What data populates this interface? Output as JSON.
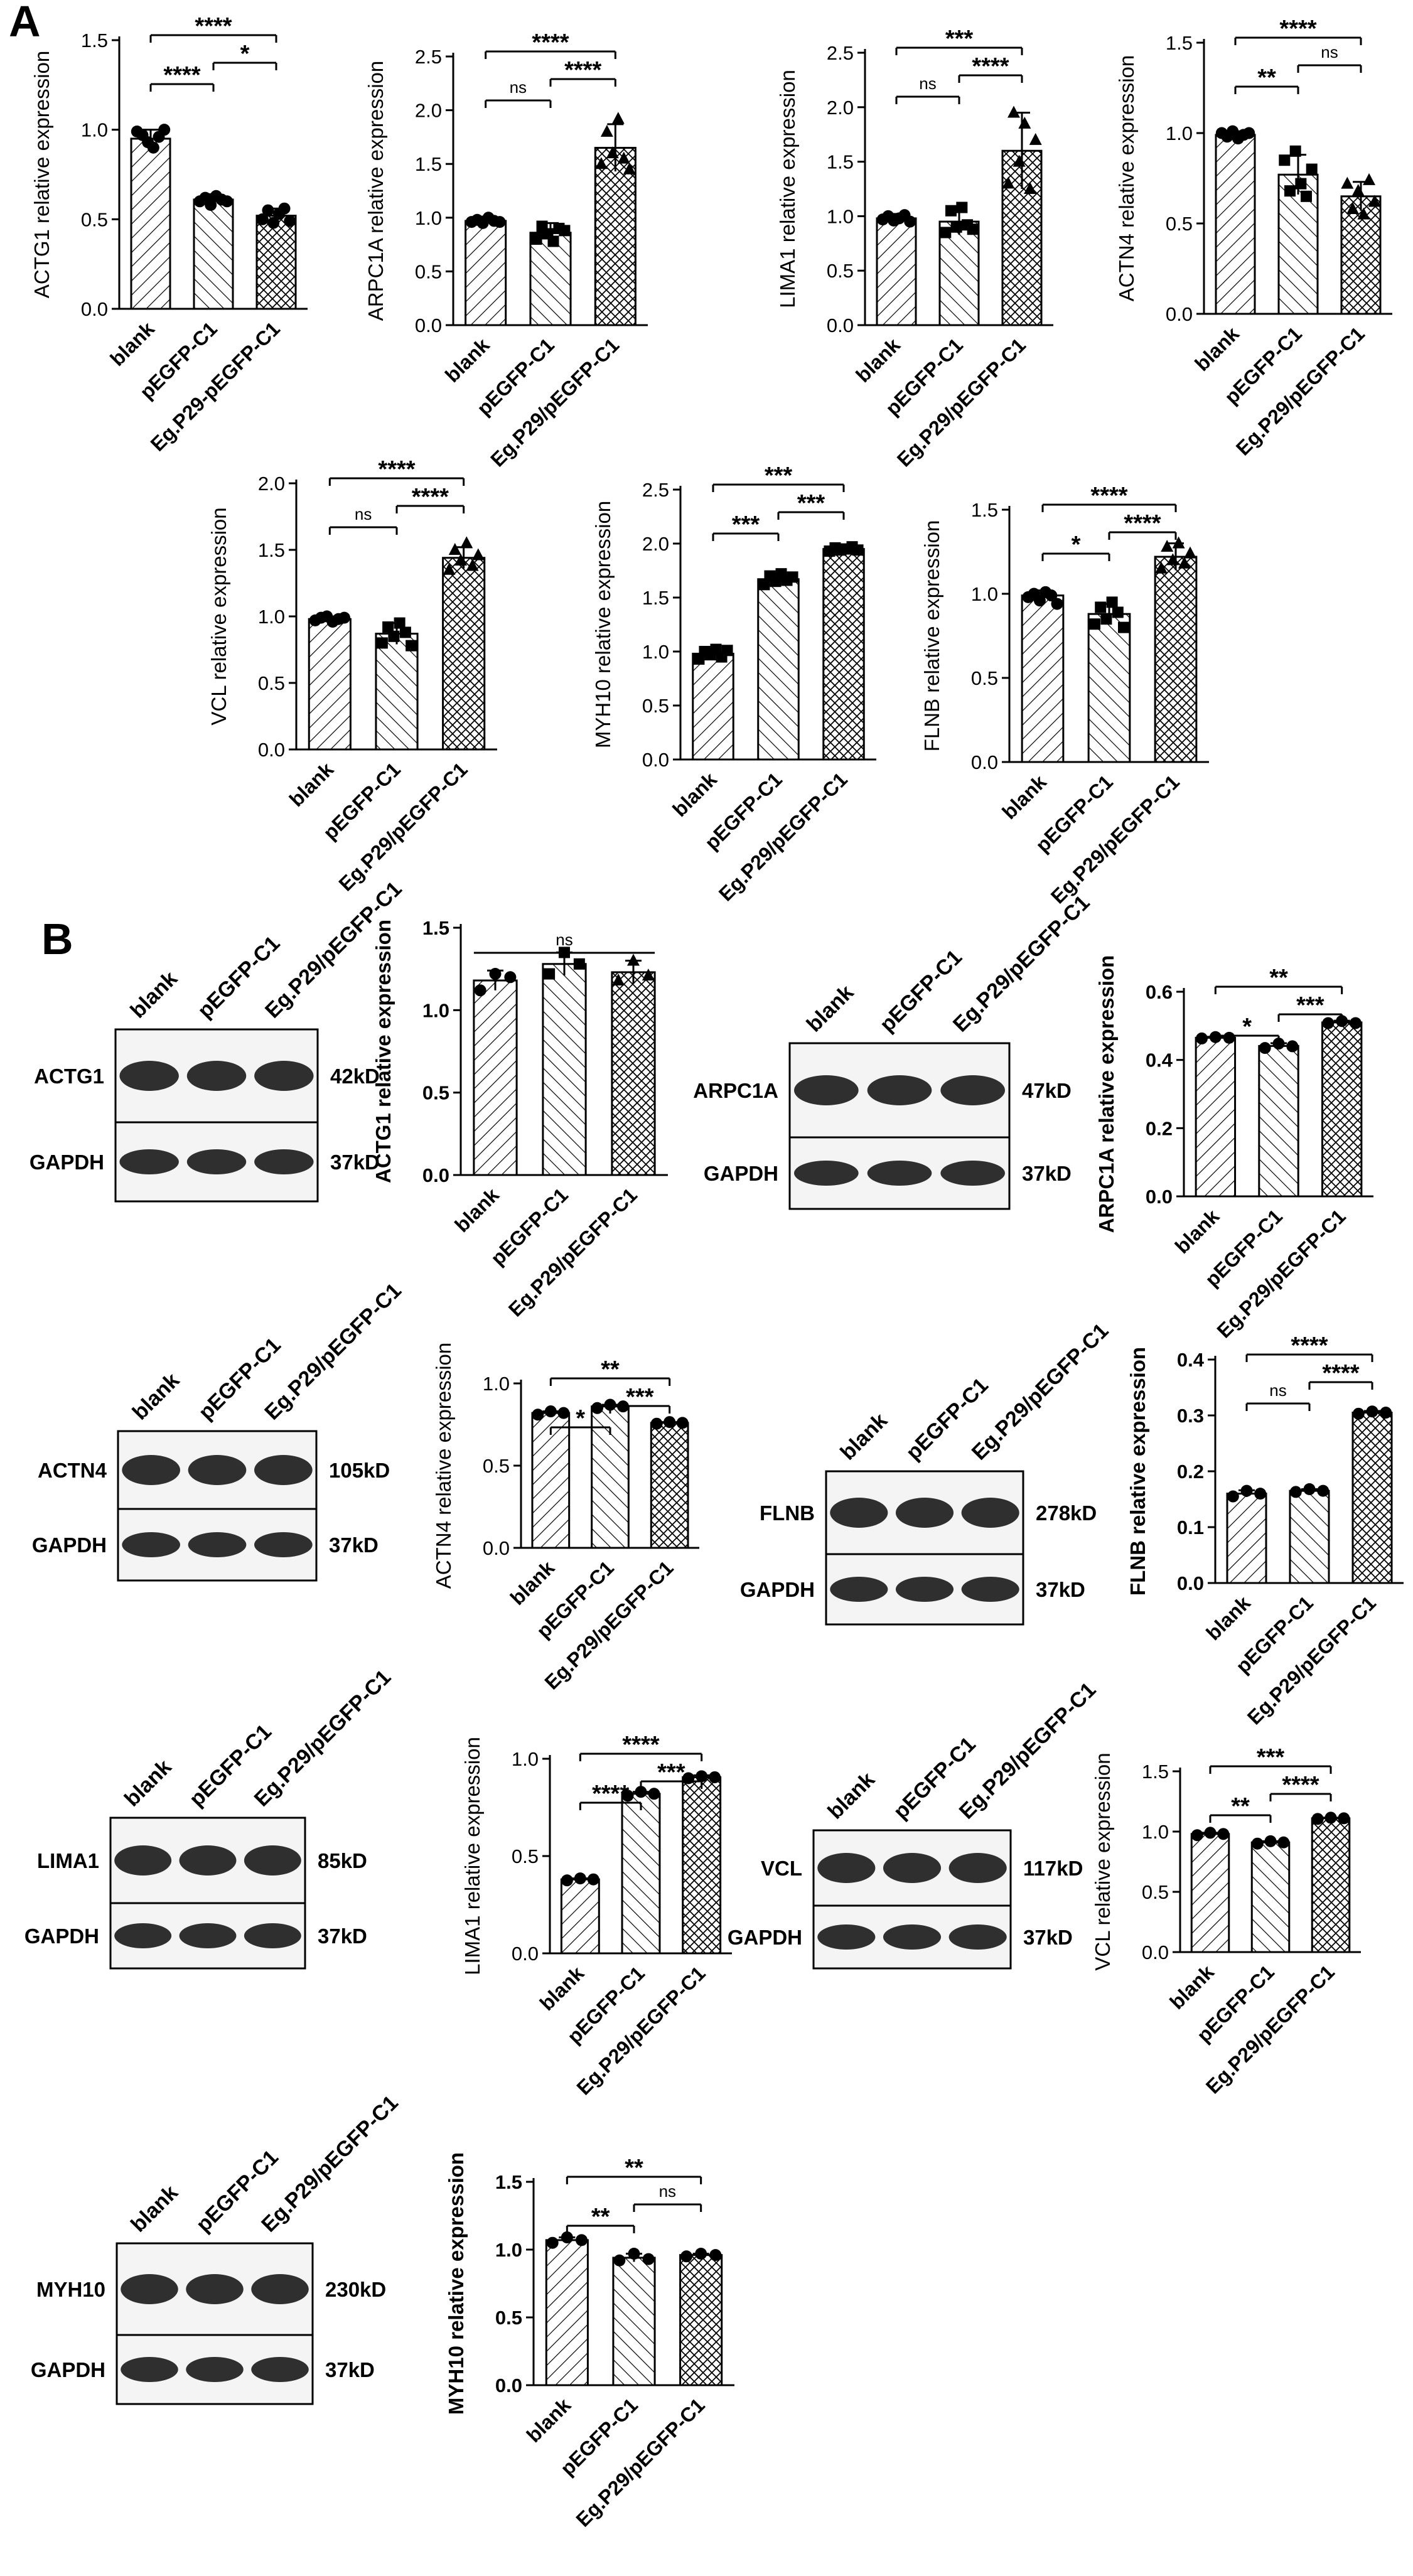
{
  "panels": {
    "A": "A",
    "B": "B"
  },
  "colors": {
    "ink": "#000000",
    "paper": "#ffffff",
    "band": "#1a1a1a",
    "blot_bg": "#dadada"
  },
  "chart_data": [
    {
      "type": "bar",
      "panel": "A",
      "ylabel": "ACTG1 relative expression",
      "categories": [
        "blank",
        "pEGFP-C1",
        "Eg.P29-pEGFP-C1"
      ],
      "values": [
        0.95,
        0.61,
        0.52
      ],
      "errors": [
        0.05,
        0.03,
        0.04
      ],
      "points": [
        [
          0.99,
          0.97,
          0.93,
          0.9,
          0.96,
          1.0
        ],
        [
          0.6,
          0.62,
          0.58,
          0.63,
          0.61,
          0.6
        ],
        [
          0.5,
          0.55,
          0.48,
          0.53,
          0.56,
          0.49
        ]
      ],
      "ylim": [
        0,
        1.5
      ],
      "yticks": [
        0,
        0.5,
        1.0,
        1.5
      ],
      "tick_labels": [
        "0.0",
        "0.5",
        "1.0",
        "1.5"
      ],
      "marker": "circle",
      "bold": false,
      "annotations": [
        {
          "pair": [
            0,
            1
          ],
          "text": "****"
        },
        {
          "pair": [
            1,
            2
          ],
          "text": "*"
        },
        {
          "pair": [
            0,
            2
          ],
          "text": "****"
        }
      ]
    },
    {
      "type": "bar",
      "panel": "A",
      "ylabel": "ARPC1A relative expression",
      "categories": [
        "blank",
        "pEGFP-C1",
        "Eg.P29/pEGFP-C1"
      ],
      "values": [
        0.97,
        0.86,
        1.65
      ],
      "errors": [
        0.04,
        0.09,
        0.22
      ],
      "points": [
        [
          0.96,
          0.98,
          0.95,
          1.0,
          0.97,
          0.96
        ],
        [
          0.8,
          0.92,
          0.85,
          0.78,
          0.9,
          0.88
        ],
        [
          1.5,
          1.8,
          1.6,
          1.92,
          1.55,
          1.45
        ]
      ],
      "ylim": [
        0,
        2.5
      ],
      "yticks": [
        0,
        0.5,
        1.0,
        1.5,
        2.0,
        2.5
      ],
      "tick_labels": [
        "0.0",
        "0.5",
        "1.0",
        "1.5",
        "2.0",
        "2.5"
      ],
      "marker": "mix",
      "bold": false,
      "annotations": [
        {
          "pair": [
            0,
            1
          ],
          "text": "ns"
        },
        {
          "pair": [
            1,
            2
          ],
          "text": "****"
        },
        {
          "pair": [
            0,
            2
          ],
          "text": "****"
        }
      ]
    },
    {
      "type": "bar",
      "panel": "A",
      "ylabel": "LIMA1 relative expression",
      "categories": [
        "blank",
        "pEGFP-C1",
        "Eg.P29/pEGFP-C1"
      ],
      "values": [
        0.98,
        0.95,
        1.6
      ],
      "errors": [
        0.04,
        0.12,
        0.35
      ],
      "points": [
        [
          0.97,
          1.0,
          0.96,
          0.98,
          1.01,
          0.95
        ],
        [
          0.85,
          1.05,
          0.9,
          1.08,
          0.92,
          0.88
        ],
        [
          1.3,
          1.95,
          1.5,
          1.85,
          1.25,
          1.7
        ]
      ],
      "ylim": [
        0,
        2.5
      ],
      "yticks": [
        0,
        0.5,
        1.0,
        1.5,
        2.0,
        2.5
      ],
      "tick_labels": [
        "0.0",
        "0.5",
        "1.0",
        "1.5",
        "2.0",
        "2.5"
      ],
      "marker": "mix",
      "bold": false,
      "annotations": [
        {
          "pair": [
            0,
            1
          ],
          "text": "ns"
        },
        {
          "pair": [
            1,
            2
          ],
          "text": "****"
        },
        {
          "pair": [
            0,
            2
          ],
          "text": "***"
        }
      ]
    },
    {
      "type": "bar",
      "panel": "A",
      "ylabel": "ACTN4 relative expression",
      "categories": [
        "blank",
        "pEGFP-C1",
        "Eg.P29/pEGFP-C1"
      ],
      "values": [
        0.99,
        0.77,
        0.65
      ],
      "errors": [
        0.02,
        0.11,
        0.08
      ],
      "points": [
        [
          1.0,
          0.98,
          1.01,
          0.97,
          0.99,
          1.0
        ],
        [
          0.85,
          0.68,
          0.9,
          0.72,
          0.65,
          0.8
        ],
        [
          0.72,
          0.58,
          0.68,
          0.55,
          0.74,
          0.62
        ]
      ],
      "ylim": [
        0,
        1.5
      ],
      "yticks": [
        0,
        0.5,
        1.0,
        1.5
      ],
      "tick_labels": [
        "0.0",
        "0.5",
        "1.0",
        "1.5"
      ],
      "marker": "mix",
      "bold": false,
      "annotations": [
        {
          "pair": [
            0,
            1
          ],
          "text": "**"
        },
        {
          "pair": [
            1,
            2
          ],
          "text": "ns"
        },
        {
          "pair": [
            0,
            2
          ],
          "text": "****"
        }
      ]
    },
    {
      "type": "bar",
      "panel": "A",
      "ylabel": "VCL relative expression",
      "categories": [
        "blank",
        "pEGFP-C1",
        "Eg.P29/pEGFP-C1"
      ],
      "values": [
        0.98,
        0.87,
        1.44
      ],
      "errors": [
        0.02,
        0.08,
        0.08
      ],
      "points": [
        [
          0.97,
          0.99,
          1.0,
          0.96,
          0.98,
          0.99
        ],
        [
          0.8,
          0.92,
          0.85,
          0.95,
          0.88,
          0.78
        ],
        [
          1.35,
          1.5,
          1.42,
          1.55,
          1.38,
          1.46
        ]
      ],
      "ylim": [
        0,
        2.0
      ],
      "yticks": [
        0,
        0.5,
        1.0,
        1.5,
        2.0
      ],
      "tick_labels": [
        "0.0",
        "0.5",
        "1.0",
        "1.5",
        "2.0"
      ],
      "marker": "mix",
      "bold": false,
      "annotations": [
        {
          "pair": [
            0,
            1
          ],
          "text": "ns"
        },
        {
          "pair": [
            1,
            2
          ],
          "text": "****"
        },
        {
          "pair": [
            0,
            2
          ],
          "text": "****"
        }
      ]
    },
    {
      "type": "bar",
      "panel": "A",
      "ylabel": "MYH10 relative expression",
      "categories": [
        "blank",
        "pEGFP-C1",
        "Eg.P29/pEGFP-C1"
      ],
      "values": [
        0.98,
        1.67,
        1.95
      ],
      "errors": [
        0.05,
        0.05,
        0.02
      ],
      "points": [
        [
          0.93,
          1.0,
          0.97,
          1.02,
          0.95,
          1.01
        ],
        [
          1.62,
          1.7,
          1.65,
          1.72,
          1.66,
          1.69
        ],
        [
          1.93,
          1.96,
          1.94,
          1.95,
          1.97,
          1.94
        ]
      ],
      "ylim": [
        0,
        2.5
      ],
      "yticks": [
        0,
        0.5,
        1.0,
        1.5,
        2.0,
        2.5
      ],
      "tick_labels": [
        "0.0",
        "0.5",
        "1.0",
        "1.5",
        "2.0",
        "2.5"
      ],
      "marker": "square",
      "bold": false,
      "annotations": [
        {
          "pair": [
            0,
            1
          ],
          "text": "***"
        },
        {
          "pair": [
            1,
            2
          ],
          "text": "***"
        },
        {
          "pair": [
            0,
            2
          ],
          "text": "***"
        }
      ]
    },
    {
      "type": "bar",
      "panel": "A",
      "ylabel": "FLNB relative expression",
      "categories": [
        "blank",
        "pEGFP-C1",
        "Eg.P29/pEGFP-C1"
      ],
      "values": [
        0.99,
        0.88,
        1.22
      ],
      "errors": [
        0.03,
        0.06,
        0.08
      ],
      "points": [
        [
          0.98,
          1.0,
          0.96,
          1.01,
          0.99,
          0.94
        ],
        [
          0.82,
          0.92,
          0.85,
          0.95,
          0.89,
          0.8
        ],
        [
          1.15,
          1.28,
          1.2,
          1.3,
          1.18,
          1.24
        ]
      ],
      "ylim": [
        0,
        1.5
      ],
      "yticks": [
        0,
        0.5,
        1.0,
        1.5
      ],
      "tick_labels": [
        "0.0",
        "0.5",
        "1.0",
        "1.5"
      ],
      "marker": "mix",
      "bold": false,
      "annotations": [
        {
          "pair": [
            0,
            1
          ],
          "text": "*"
        },
        {
          "pair": [
            1,
            2
          ],
          "text": "****"
        },
        {
          "pair": [
            0,
            2
          ],
          "text": "****"
        }
      ]
    },
    {
      "type": "bar",
      "panel": "B",
      "ylabel": "ACTG1 relative expression",
      "categories": [
        "blank",
        "pEGFP-C1",
        "Eg.P29/pEGFP-C1"
      ],
      "values": [
        1.18,
        1.28,
        1.23
      ],
      "errors": [
        0.06,
        0.07,
        0.07
      ],
      "points": [
        [
          1.12,
          1.22,
          1.2
        ],
        [
          1.22,
          1.35,
          1.28
        ],
        [
          1.18,
          1.3,
          1.21
        ]
      ],
      "ylim": [
        0,
        1.5
      ],
      "yticks": [
        0,
        0.5,
        1.0,
        1.5
      ],
      "tick_labels": [
        "0.0",
        "0.5",
        "1.0",
        "1.5"
      ],
      "marker": "mix",
      "bold": true,
      "annotations": [
        {
          "pair": [
            0,
            2
          ],
          "text": "ns",
          "flat": true
        }
      ]
    },
    {
      "type": "bar",
      "panel": "B",
      "ylabel": "ARPC1A relative expression",
      "categories": [
        "blank",
        "pEGFP-C1",
        "Eg.P29/pEGFP-C1"
      ],
      "values": [
        0.465,
        0.441,
        0.51
      ],
      "errors": [
        0.003,
        0.008,
        0.005
      ],
      "points": [
        [
          0.463,
          0.467,
          0.465
        ],
        [
          0.435,
          0.448,
          0.44
        ],
        [
          0.508,
          0.514,
          0.508
        ]
      ],
      "ylim": [
        0,
        0.6
      ],
      "yticks": [
        0,
        0.2,
        0.4,
        0.6
      ],
      "tick_labels": [
        "0.0",
        "0.2",
        "0.4",
        "0.6"
      ],
      "marker": "circle",
      "bold": true,
      "annotations": [
        {
          "pair": [
            0,
            1
          ],
          "text": "*"
        },
        {
          "pair": [
            1,
            2
          ],
          "text": "***"
        },
        {
          "pair": [
            0,
            2
          ],
          "text": "**"
        }
      ]
    },
    {
      "type": "bar",
      "panel": "B",
      "ylabel": "ACTN4 relative expression",
      "categories": [
        "blank",
        "pEGFP-C1",
        "Eg.P29/pEGFP-C1"
      ],
      "values": [
        0.82,
        0.86,
        0.76
      ],
      "errors": [
        0.01,
        0.01,
        0.005
      ],
      "points": [
        [
          0.81,
          0.83,
          0.82
        ],
        [
          0.85,
          0.87,
          0.86
        ],
        [
          0.755,
          0.765,
          0.76
        ]
      ],
      "ylim": [
        0,
        1.0
      ],
      "yticks": [
        0,
        0.5,
        1.0
      ],
      "tick_labels": [
        "0.0",
        "0.5",
        "1.0"
      ],
      "marker": "circle",
      "bold": false,
      "annotations": [
        {
          "pair": [
            0,
            1
          ],
          "text": "*"
        },
        {
          "pair": [
            1,
            2
          ],
          "text": "***"
        },
        {
          "pair": [
            0,
            2
          ],
          "text": "**"
        }
      ]
    },
    {
      "type": "bar",
      "panel": "B",
      "ylabel": "FLNB relative expression",
      "categories": [
        "blank",
        "pEGFP-C1",
        "Eg.P29/pEGFP-C1"
      ],
      "values": [
        0.16,
        0.165,
        0.305
      ],
      "errors": [
        0.006,
        0.003,
        0.003
      ],
      "points": [
        [
          0.155,
          0.165,
          0.16
        ],
        [
          0.163,
          0.168,
          0.165
        ],
        [
          0.303,
          0.307,
          0.305
        ]
      ],
      "ylim": [
        0,
        0.4
      ],
      "yticks": [
        0,
        0.1,
        0.2,
        0.3,
        0.4
      ],
      "tick_labels": [
        "0.0",
        "0.1",
        "0.2",
        "0.3",
        "0.4"
      ],
      "marker": "circle",
      "bold": true,
      "annotations": [
        {
          "pair": [
            0,
            1
          ],
          "text": "ns"
        },
        {
          "pair": [
            1,
            2
          ],
          "text": "****"
        },
        {
          "pair": [
            0,
            2
          ],
          "text": "****"
        }
      ]
    },
    {
      "type": "bar",
      "panel": "B",
      "ylabel": "LIMA1 relative expression",
      "categories": [
        "blank",
        "pEGFP-C1",
        "Eg.P29/pEGFP-C1"
      ],
      "values": [
        0.38,
        0.82,
        0.905
      ],
      "errors": [
        0.005,
        0.01,
        0.01
      ],
      "points": [
        [
          0.375,
          0.385,
          0.38
        ],
        [
          0.81,
          0.83,
          0.82
        ],
        [
          0.9,
          0.91,
          0.905
        ]
      ],
      "ylim": [
        0,
        1.0
      ],
      "yticks": [
        0,
        0.5,
        1.0
      ],
      "tick_labels": [
        "0.0",
        "0.5",
        "1.0"
      ],
      "marker": "circle",
      "bold": false,
      "annotations": [
        {
          "pair": [
            0,
            1
          ],
          "text": "****"
        },
        {
          "pair": [
            1,
            2
          ],
          "text": "***"
        },
        {
          "pair": [
            0,
            2
          ],
          "text": "****"
        }
      ]
    },
    {
      "type": "bar",
      "panel": "B",
      "ylabel": "VCL relative expression",
      "categories": [
        "blank",
        "pEGFP-C1",
        "Eg.P29/pEGFP-C1"
      ],
      "values": [
        0.98,
        0.91,
        1.11
      ],
      "errors": [
        0.01,
        0.01,
        0.005
      ],
      "points": [
        [
          0.97,
          0.99,
          0.98
        ],
        [
          0.9,
          0.92,
          0.91
        ],
        [
          1.105,
          1.115,
          1.11
        ]
      ],
      "ylim": [
        0,
        1.5
      ],
      "yticks": [
        0,
        0.5,
        1.0,
        1.5
      ],
      "tick_labels": [
        "0.0",
        "0.5",
        "1.0",
        "1.5"
      ],
      "marker": "circle",
      "bold": false,
      "annotations": [
        {
          "pair": [
            0,
            1
          ],
          "text": "**"
        },
        {
          "pair": [
            1,
            2
          ],
          "text": "****"
        },
        {
          "pair": [
            0,
            2
          ],
          "text": "***"
        }
      ]
    },
    {
      "type": "bar",
      "panel": "B",
      "ylabel": "MYH10 relative expression",
      "categories": [
        "blank",
        "pEGFP-C1",
        "Eg.P29/pEGFP-C1"
      ],
      "values": [
        1.07,
        0.94,
        0.96
      ],
      "errors": [
        0.02,
        0.03,
        0.01
      ],
      "points": [
        [
          1.05,
          1.09,
          1.07
        ],
        [
          0.92,
          0.97,
          0.93
        ],
        [
          0.95,
          0.97,
          0.96
        ]
      ],
      "ylim": [
        0,
        1.5
      ],
      "yticks": [
        0,
        0.5,
        1.0,
        1.5
      ],
      "tick_labels": [
        "0.0",
        "0.5",
        "1.0",
        "1.5"
      ],
      "marker": "circle",
      "bold": true,
      "annotations": [
        {
          "pair": [
            0,
            1
          ],
          "text": "**"
        },
        {
          "pair": [
            1,
            2
          ],
          "text": "ns"
        },
        {
          "pair": [
            0,
            2
          ],
          "text": "**"
        }
      ]
    }
  ],
  "blots": [
    {
      "lanes": [
        "blank",
        "pEGFP-C1",
        "Eg.P29/pEGFP-C1"
      ],
      "rows": [
        {
          "protein": "ACTG1",
          "size": "42kD"
        },
        {
          "protein": "GAPDH",
          "size": "37kD"
        }
      ]
    },
    {
      "lanes": [
        "blank",
        "pEGFP-C1",
        "Eg.P29/pEGFP-C1"
      ],
      "rows": [
        {
          "protein": "ARPC1A",
          "size": "47kD"
        },
        {
          "protein": "GAPDH",
          "size": "37kD"
        }
      ]
    },
    {
      "lanes": [
        "blank",
        "pEGFP-C1",
        "Eg.P29/pEGFP-C1"
      ],
      "rows": [
        {
          "protein": "ACTN4",
          "size": "105kD"
        },
        {
          "protein": "GAPDH",
          "size": "37kD"
        }
      ]
    },
    {
      "lanes": [
        "blank",
        "pEGFP-C1",
        "Eg.P29/pEGFP-C1"
      ],
      "rows": [
        {
          "protein": "FLNB",
          "size": "278kD"
        },
        {
          "protein": "GAPDH",
          "size": "37kD"
        }
      ]
    },
    {
      "lanes": [
        "blank",
        "pEGFP-C1",
        "Eg.P29/pEGFP-C1"
      ],
      "rows": [
        {
          "protein": "LIMA1",
          "size": "85kD"
        },
        {
          "protein": "GAPDH",
          "size": "37kD"
        }
      ]
    },
    {
      "lanes": [
        "blank",
        "pEGFP-C1",
        "Eg.P29/pEGFP-C1"
      ],
      "rows": [
        {
          "protein": "VCL",
          "size": "117kD"
        },
        {
          "protein": "GAPDH",
          "size": "37kD"
        }
      ]
    },
    {
      "lanes": [
        "blank",
        "pEGFP-C1",
        "Eg.P29/pEGFP-C1"
      ],
      "rows": [
        {
          "protein": "MYH10",
          "size": "230kD"
        },
        {
          "protein": "GAPDH",
          "size": "37kD"
        }
      ]
    }
  ]
}
